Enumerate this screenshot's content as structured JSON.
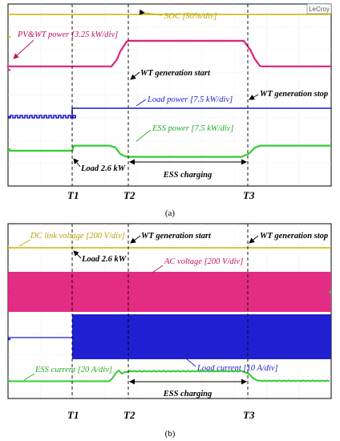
{
  "chart_data": [
    {
      "type": "line",
      "panel": "(a)",
      "brand": "LeCroy",
      "time_markers": [
        "T1",
        "T2",
        "T3"
      ],
      "channel_labels": [
        "SOC [50%/div]",
        "PV&WT power [3.25 kW/div]",
        "Load power [7.5 kW/div]",
        "ESS power [7.5 kW/div]"
      ],
      "event_labels": [
        "WT generation start",
        "WT generation stop",
        "Load 2.6 kW",
        "ESS charging"
      ],
      "series": [
        {
          "name": "SOC [50%/div]",
          "color": "#c8b400",
          "shape": "constant",
          "level_div": 0
        },
        {
          "name": "PV&WT power [3.25 kW/div]",
          "color": "#e0207a",
          "shape": "step_up_at_T2_down_at_T3",
          "level_div": [
            0,
            1.2,
            0
          ]
        },
        {
          "name": "Load power [7.5 kW/div]",
          "color": "#1a1acc",
          "shape": "step_up_at_T1",
          "level_div": [
            0,
            0.3
          ]
        },
        {
          "name": "ESS power [7.5 kW/div]",
          "color": "#33cc33",
          "shape": "step_up_at_T1_dip_T2_to_T3",
          "level_div": [
            0,
            0.4,
            0,
            0.4
          ]
        }
      ]
    },
    {
      "type": "line",
      "panel": "(b)",
      "time_markers": [
        "T1",
        "T2",
        "T3"
      ],
      "channel_labels": [
        "DC link voltage [200 V/div]",
        "AC voltage [200 V/div]",
        "Load current [10 A/div]",
        "ESS current [20 A/div]"
      ],
      "event_labels": [
        "WT generation start",
        "WT generation stop",
        "Load 2.6 kW",
        "ESS charging"
      ],
      "series": [
        {
          "name": "DC link voltage [200 V/div]",
          "color": "#c8b400",
          "shape": "constant"
        },
        {
          "name": "AC voltage [200 V/div]",
          "color": "#e0207a",
          "shape": "sinusoidal_band"
        },
        {
          "name": "Load current [10 A/div]",
          "color": "#1a1acc",
          "shape": "zero_then_sinusoidal_band_from_T1"
        },
        {
          "name": "ESS current [20 A/div]",
          "color": "#33cc33",
          "shape": "step_up_at_T2_down_at_T3"
        }
      ]
    }
  ],
  "captions": {
    "a": "(a)",
    "b": "(b)"
  },
  "colors": {
    "soc": "#c8b400",
    "pvwt": "#e0207a",
    "load": "#1a1acc",
    "ess": "#33cc33",
    "annot": "#000000"
  }
}
